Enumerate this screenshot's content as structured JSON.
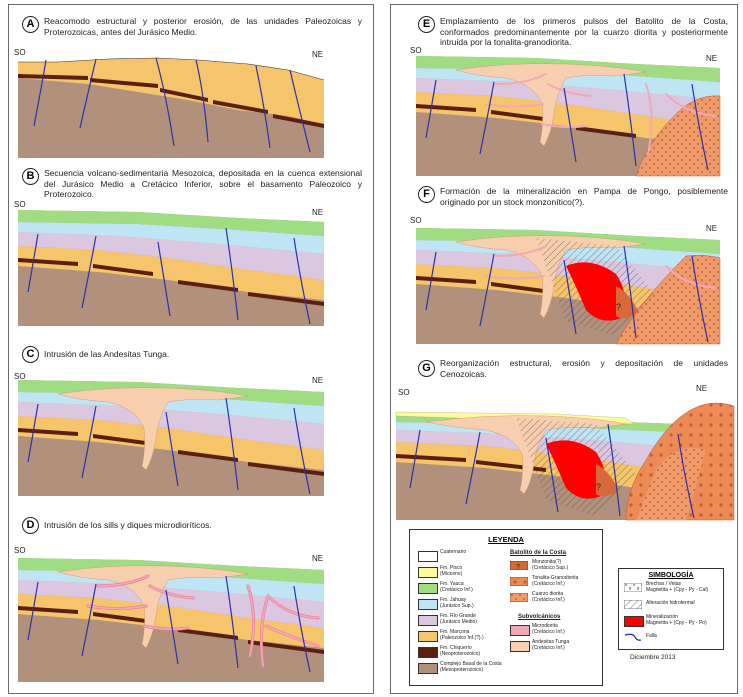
{
  "panels": [
    {
      "letter": "A",
      "caption": "Reacomodo estructural y posterior erosión, de las unidades Paleozoicas y Proterozoicas, antes del Jurásico Medio."
    },
    {
      "letter": "B",
      "caption": "Secuencia volcano-sedimentaria Mesozoica, depositada en la cuenca extensional del Jurásico Medio a Cretácico Inferior, sobre el basamento Paleozoico y Proterozoico."
    },
    {
      "letter": "C",
      "caption": "Intrusión de las Andesitas Tunga."
    },
    {
      "letter": "D",
      "caption": "Intrusión de los sills y diques microdioríticos."
    },
    {
      "letter": "E",
      "caption": "Emplazamiento de los primeros pulsos del Batolito de la Costa, conformados predominantemente por la cuarzo diorita y posteriormente intruida por la tonalita-granodiorita."
    },
    {
      "letter": "F",
      "caption": "Formación de la mineralización en Pampa de Pongo, posiblemente originado por un stock monzonítico(?)."
    },
    {
      "letter": "G",
      "caption": "Reorganización estructural, erosión y depositación de unidades Cenozoicas."
    }
  ],
  "directions": {
    "sw": "SO",
    "ne": "NE"
  },
  "question_mark": "?",
  "legend": {
    "title": "LEYENDA",
    "units": [
      {
        "name": "Cuaternario",
        "age": "",
        "color": "#ffffff"
      },
      {
        "name": "Fm. Pisco",
        "age": "(Mioceno)",
        "color": "#fbfb9a"
      },
      {
        "name": "Fm. Yauca",
        "age": "(Cretácico Inf.)",
        "color": "#9fdc82"
      },
      {
        "name": "Fm. Jahuay",
        "age": "(Jurásico Sup.)",
        "color": "#bfe4f3"
      },
      {
        "name": "Fm. Río Grande",
        "age": "(Jurásico Medio)",
        "color": "#dcc7e0"
      },
      {
        "name": "Fm. Marcona",
        "age": "(Paleozoico Inf.(?).)",
        "color": "#f6c56b"
      },
      {
        "name": "Fm. Chiquerío",
        "age": "(Neoproterozoico)",
        "color": "#5c1f0f"
      },
      {
        "name": "Complejo Basal de la Costa",
        "age": "(Mesoproterozoico)",
        "color": "#b1917b"
      }
    ],
    "batolito_title": "Batolito de la Costa",
    "batolito": [
      {
        "name": "Monzonita(?)",
        "age": "(Cretácico Sup.)",
        "color": "#d9693a",
        "pattern": "question"
      },
      {
        "name": "Tonalita-Granodiorita",
        "age": "(Cretácico Inf.)",
        "color": "#f0894a",
        "pattern": "plus"
      },
      {
        "name": "Cuarzo diorita",
        "age": "(Cretácico Inf.)",
        "color": "#f6a57b",
        "pattern": "dot"
      }
    ],
    "subvolc_title": "Subvolcánicos",
    "subvolc": [
      {
        "name": "Microdiorita",
        "age": "(Cretácico Inf.)",
        "color": "#f4a7b7"
      },
      {
        "name": "Andesitas Tunga",
        "age": "(Cretácico Inf.)",
        "color": "#f8cfae"
      }
    ]
  },
  "simbologia": {
    "title": "SIMBOLOGÍA",
    "items": [
      {
        "name": "Brechas / Vetas",
        "sub": "Magnetita + (Cpy - Py - Cal)"
      },
      {
        "name": "Alteración hidrotermal",
        "sub": ""
      },
      {
        "name": "Mineralización",
        "sub": "Magnetita + (Cpy - Py - Po)",
        "color": "#ff0000"
      },
      {
        "name": "Falla",
        "sub": "",
        "color": "#2a33a8"
      }
    ]
  },
  "date": "Diciembre 2013"
}
